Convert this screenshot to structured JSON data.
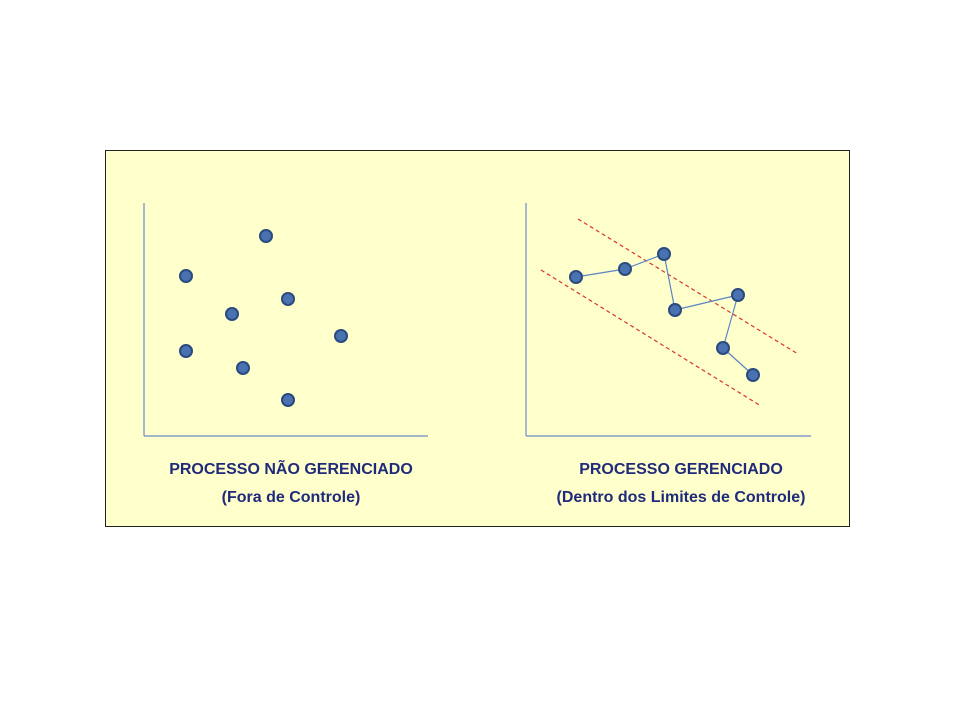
{
  "colors": {
    "panel_background": "#ffffcc",
    "axis": "#6a8cc8",
    "point_fill": "#4a72b0",
    "point_stroke": "#2a4a80",
    "connector": "#5b84c4",
    "limit_line": "#d9352a",
    "caption_text": "#1f2a7a"
  },
  "left_diagram": {
    "caption_line1": "PROCESSO NÃO GERENCIADO",
    "caption_line2": "(Fora de Controle)"
  },
  "right_diagram": {
    "caption_line1": "PROCESSO GERENCIADO",
    "caption_line2": "(Dentro dos Limites de Controle)"
  }
}
